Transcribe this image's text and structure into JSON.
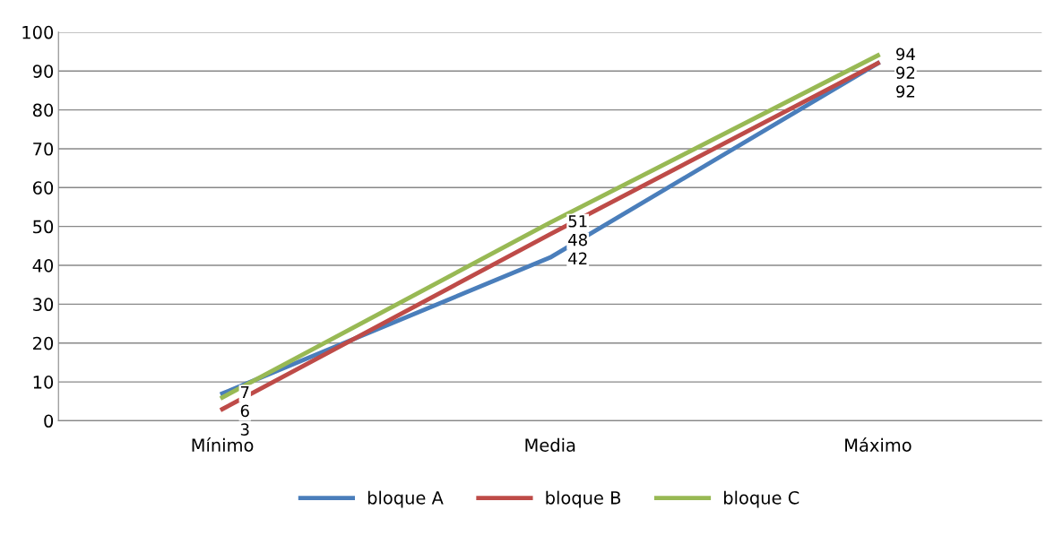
{
  "chart_data": {
    "type": "line",
    "categories": [
      "Mínimo",
      "Media",
      "Máximo"
    ],
    "series": [
      {
        "name": "bloque A",
        "color": "#4a7ebb",
        "values": [
          7,
          42,
          92
        ]
      },
      {
        "name": "bloque B",
        "color": "#be4b48",
        "values": [
          3,
          48,
          92
        ]
      },
      {
        "name": "bloque C",
        "color": "#98b954",
        "values": [
          6,
          51,
          94
        ]
      }
    ],
    "ylim": [
      0,
      100
    ],
    "yticks": [
      0,
      10,
      20,
      30,
      40,
      50,
      60,
      70,
      80,
      90,
      100
    ],
    "grid": "y",
    "legend": "bottom",
    "data_labels": true,
    "line_style": "solid"
  }
}
